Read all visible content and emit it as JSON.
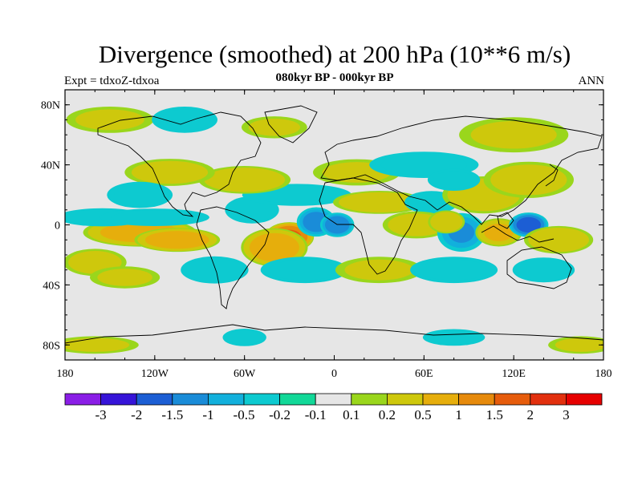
{
  "title": "Divergence (smoothed) at 200 hPa (10**6 m/s)",
  "subtitle": "080kyr BP - 000kyr BP",
  "experiment_label": "Expt = tdxoZ-tdxoa",
  "season_label": "ANN",
  "chart_data": {
    "type": "heatmap",
    "title": "Divergence (smoothed) at 200 hPa (10**6 m/s)",
    "subtitle": "080kyr BP - 000kyr BP",
    "projection": "cylindrical equidistant",
    "lon_range": [
      -180,
      180
    ],
    "lat_range": [
      -90,
      90
    ],
    "x_ticks": [
      {
        "value": -180,
        "label": "180"
      },
      {
        "value": -120,
        "label": "120W"
      },
      {
        "value": -60,
        "label": "60W"
      },
      {
        "value": 0,
        "label": "0"
      },
      {
        "value": 60,
        "label": "60E"
      },
      {
        "value": 120,
        "label": "120E"
      },
      {
        "value": 180,
        "label": "180"
      }
    ],
    "y_ticks": [
      {
        "value": 80,
        "label": "80N"
      },
      {
        "value": 40,
        "label": "40N"
      },
      {
        "value": 0,
        "label": "0"
      },
      {
        "value": -40,
        "label": "40S"
      },
      {
        "value": -80,
        "label": "80S"
      }
    ],
    "colorbar": {
      "levels": [
        "-3",
        "-2",
        "-1.5",
        "-1",
        "-0.5",
        "-0.2",
        "-0.1",
        "0.1",
        "0.2",
        "0.5",
        "1",
        "1.5",
        "2",
        "3"
      ],
      "colors": [
        "#8a1ee6",
        "#3614d8",
        "#1c5ed4",
        "#1a8cd8",
        "#12b0dc",
        "#0dcad0",
        "#12d898",
        "#e6e6e6",
        "#9ad61c",
        "#cec80c",
        "#e6ae0c",
        "#e68a0c",
        "#e65c0c",
        "#e2300e",
        "#e60000"
      ]
    },
    "fields": [
      {
        "lon": -130,
        "lat": -5,
        "value": 0.7,
        "slon": 24,
        "slat": 6
      },
      {
        "lon": -105,
        "lat": -10,
        "value": 0.8,
        "slon": 18,
        "slat": 5
      },
      {
        "lon": -155,
        "lat": 5,
        "value": -0.4,
        "slon": 20,
        "slat": 4
      },
      {
        "lon": -120,
        "lat": 5,
        "value": -0.3,
        "slon": 25,
        "slat": 4
      },
      {
        "lon": -160,
        "lat": -25,
        "value": 0.4,
        "slon": 14,
        "slat": 6
      },
      {
        "lon": -140,
        "lat": -35,
        "value": 0.3,
        "slon": 16,
        "slat": 5
      },
      {
        "lon": -30,
        "lat": -8,
        "value": 1.5,
        "slon": 10,
        "slat": 6
      },
      {
        "lon": -40,
        "lat": -15,
        "value": 0.8,
        "slon": 14,
        "slat": 8
      },
      {
        "lon": -12,
        "lat": 2,
        "value": -1.3,
        "slon": 8,
        "slat": 6
      },
      {
        "lon": 2,
        "lat": 0,
        "value": -1.4,
        "slon": 7,
        "slat": 5
      },
      {
        "lon": -55,
        "lat": 10,
        "value": -0.4,
        "slon": 12,
        "slat": 6
      },
      {
        "lon": -25,
        "lat": 20,
        "value": -0.3,
        "slon": 25,
        "slat": 5
      },
      {
        "lon": -60,
        "lat": 30,
        "value": 0.5,
        "slon": 20,
        "slat": 6
      },
      {
        "lon": -110,
        "lat": 35,
        "value": 0.4,
        "slon": 20,
        "slat": 6
      },
      {
        "lon": -130,
        "lat": 20,
        "value": -0.3,
        "slon": 15,
        "slat": 6
      },
      {
        "lon": 30,
        "lat": 15,
        "value": 0.5,
        "slon": 20,
        "slat": 5
      },
      {
        "lon": 15,
        "lat": 35,
        "value": 0.3,
        "slon": 20,
        "slat": 6
      },
      {
        "lon": 65,
        "lat": 15,
        "value": -0.4,
        "slon": 12,
        "slat": 5
      },
      {
        "lon": 55,
        "lat": 0,
        "value": 0.4,
        "slon": 15,
        "slat": 6
      },
      {
        "lon": 85,
        "lat": -5,
        "value": -1.0,
        "slon": 10,
        "slat": 8
      },
      {
        "lon": 75,
        "lat": 2,
        "value": 0.5,
        "slon": 8,
        "slat": 5
      },
      {
        "lon": 110,
        "lat": -5,
        "value": 0.6,
        "slon": 10,
        "slat": 6
      },
      {
        "lon": 130,
        "lat": 0,
        "value": -1.8,
        "slon": 8,
        "slat": 5
      },
      {
        "lon": 150,
        "lat": -10,
        "value": 0.5,
        "slon": 15,
        "slat": 6
      },
      {
        "lon": 100,
        "lat": 20,
        "value": 0.5,
        "slon": 18,
        "slat": 8
      },
      {
        "lon": 130,
        "lat": 30,
        "value": 0.4,
        "slon": 20,
        "slat": 8
      },
      {
        "lon": 60,
        "lat": 40,
        "value": -0.3,
        "slon": 25,
        "slat": 6
      },
      {
        "lon": 80,
        "lat": 30,
        "value": -0.3,
        "slon": 12,
        "slat": 5
      },
      {
        "lon": -80,
        "lat": -30,
        "value": -0.4,
        "slon": 15,
        "slat": 6
      },
      {
        "lon": -20,
        "lat": -30,
        "value": -0.3,
        "slon": 20,
        "slat": 6
      },
      {
        "lon": 30,
        "lat": -30,
        "value": 0.3,
        "slon": 20,
        "slat": 6
      },
      {
        "lon": 80,
        "lat": -30,
        "value": -0.3,
        "slon": 20,
        "slat": 6
      },
      {
        "lon": 140,
        "lat": -30,
        "value": -0.2,
        "slon": 15,
        "slat": 6
      },
      {
        "lon": -150,
        "lat": 70,
        "value": 0.3,
        "slon": 20,
        "slat": 6
      },
      {
        "lon": -100,
        "lat": 70,
        "value": -0.3,
        "slon": 15,
        "slat": 6
      },
      {
        "lon": -40,
        "lat": 65,
        "value": 0.3,
        "slon": 15,
        "slat": 5
      },
      {
        "lon": 120,
        "lat": 60,
        "value": 0.3,
        "slon": 25,
        "slat": 8
      },
      {
        "lon": -160,
        "lat": -80,
        "value": 0.3,
        "slon": 20,
        "slat": 4
      },
      {
        "lon": 165,
        "lat": -80,
        "value": 0.3,
        "slon": 15,
        "slat": 4
      },
      {
        "lon": -60,
        "lat": -75,
        "value": -0.3,
        "slon": 10,
        "slat": 4
      },
      {
        "lon": 80,
        "lat": -75,
        "value": -0.2,
        "slon": 15,
        "slat": 4
      }
    ]
  }
}
